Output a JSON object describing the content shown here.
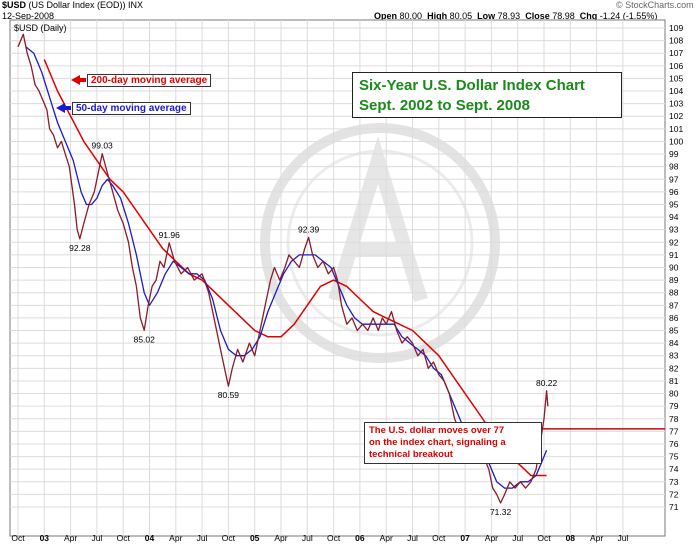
{
  "header": {
    "symbol": "$USD",
    "name": "(US Dollar Index (EOD)) INX",
    "date": "12-Sep-2008",
    "period": "$USD (Daily)",
    "open_label": "Open",
    "open": "80.00",
    "high_label": "High",
    "high": "80.05",
    "low_label": "Low",
    "low": "78.93",
    "close_label": "Close",
    "close": "78.98",
    "chg_label": "Chg",
    "chg": "-1.24 (-1.55%)",
    "source": "© StockCharts.com"
  },
  "annotations": {
    "title_line1": "Six-Year U.S. Dollar Index Chart",
    "title_line2": "Sept. 2002 to Sept. 2008",
    "ma200_label": "200-day moving average",
    "ma50_label": "50-day moving average",
    "note_line1": "The U.S. dollar moves over 77",
    "note_line2": "on the index chart, signaling a",
    "note_line3": "technical breakout",
    "colors": {
      "title": "#1a8a1a",
      "ma200": "#e00000",
      "ma50": "#1a1acc",
      "price": "#8b1a2a",
      "note": "#d00000"
    }
  },
  "chart_data": {
    "type": "line",
    "ylim": [
      70,
      110
    ],
    "yticks": [
      71,
      72,
      73,
      74,
      75,
      76,
      77,
      78,
      79,
      80,
      81,
      82,
      83,
      84,
      85,
      86,
      87,
      88,
      89,
      90,
      91,
      92,
      93,
      94,
      95,
      96,
      97,
      98,
      99,
      100,
      101,
      102,
      103,
      104,
      105,
      106,
      107,
      108,
      109
    ],
    "xlabels": [
      "Oct",
      "03",
      "Apr",
      "Jul",
      "Oct",
      "04",
      "Apr",
      "Jul",
      "Oct",
      "05",
      "Apr",
      "Jul",
      "Oct",
      "06",
      "Apr",
      "Jul",
      "Oct",
      "07",
      "Apr",
      "Jul",
      "Oct",
      "08",
      "Apr",
      "Jul"
    ],
    "grid": true,
    "reference_line": 77.2,
    "series": [
      {
        "name": "$USD (Daily)",
        "points": [
          [
            0,
            107.5
          ],
          [
            0.2,
            108.5
          ],
          [
            0.35,
            107
          ],
          [
            0.5,
            106
          ],
          [
            0.65,
            104.5
          ],
          [
            0.8,
            104
          ],
          [
            1.0,
            103
          ],
          [
            1.1,
            102.5
          ],
          [
            1.2,
            101
          ],
          [
            1.35,
            100.5
          ],
          [
            1.5,
            99.5
          ],
          [
            1.65,
            100
          ],
          [
            1.8,
            99
          ],
          [
            1.95,
            98
          ],
          [
            2.05,
            96.5
          ],
          [
            2.15,
            95
          ],
          [
            2.25,
            93
          ],
          [
            2.35,
            92.28
          ],
          [
            2.5,
            93.5
          ],
          [
            2.7,
            95
          ],
          [
            2.9,
            96
          ],
          [
            3.05,
            97.5
          ],
          [
            3.2,
            99.03
          ],
          [
            3.4,
            97.5
          ],
          [
            3.6,
            96
          ],
          [
            3.8,
            94.5
          ],
          [
            4.0,
            93.5
          ],
          [
            4.2,
            92
          ],
          [
            4.35,
            90
          ],
          [
            4.5,
            88.5
          ],
          [
            4.65,
            86
          ],
          [
            4.8,
            85.02
          ],
          [
            4.95,
            87
          ],
          [
            5.1,
            88.5
          ],
          [
            5.25,
            89
          ],
          [
            5.4,
            90.5
          ],
          [
            5.55,
            90
          ],
          [
            5.75,
            91.96
          ],
          [
            5.95,
            90.5
          ],
          [
            6.2,
            89.5
          ],
          [
            6.45,
            90
          ],
          [
            6.7,
            89
          ],
          [
            7.0,
            89.5
          ],
          [
            7.25,
            88
          ],
          [
            7.5,
            85.5
          ],
          [
            7.7,
            83.5
          ],
          [
            7.85,
            82
          ],
          [
            8.0,
            80.59
          ],
          [
            8.15,
            82
          ],
          [
            8.35,
            83.5
          ],
          [
            8.55,
            82.5
          ],
          [
            8.8,
            84
          ],
          [
            9.0,
            83
          ],
          [
            9.25,
            85.5
          ],
          [
            9.45,
            87.5
          ],
          [
            9.6,
            89
          ],
          [
            9.75,
            90
          ],
          [
            9.95,
            89
          ],
          [
            10.15,
            90
          ],
          [
            10.3,
            91
          ],
          [
            10.5,
            90.5
          ],
          [
            10.7,
            90
          ],
          [
            10.9,
            91.5
          ],
          [
            11.05,
            92.39
          ],
          [
            11.2,
            91
          ],
          [
            11.4,
            90
          ],
          [
            11.6,
            90.5
          ],
          [
            11.8,
            89.5
          ],
          [
            12.0,
            90
          ],
          [
            12.15,
            89
          ],
          [
            12.3,
            87
          ],
          [
            12.5,
            85.5
          ],
          [
            12.7,
            86
          ],
          [
            12.9,
            85
          ],
          [
            13.1,
            85.5
          ],
          [
            13.3,
            85
          ],
          [
            13.5,
            86
          ],
          [
            13.7,
            85
          ],
          [
            13.85,
            86
          ],
          [
            14.0,
            85.5
          ],
          [
            14.2,
            86.5
          ],
          [
            14.4,
            85
          ],
          [
            14.6,
            84
          ],
          [
            14.8,
            84.5
          ],
          [
            15.0,
            84
          ],
          [
            15.2,
            83
          ],
          [
            15.4,
            83.5
          ],
          [
            15.6,
            82
          ],
          [
            15.8,
            82.5
          ],
          [
            16.0,
            81.5
          ],
          [
            16.2,
            81
          ],
          [
            16.4,
            80
          ],
          [
            16.6,
            78
          ],
          [
            16.8,
            77
          ],
          [
            17.0,
            76
          ],
          [
            17.15,
            77
          ],
          [
            17.3,
            76.5
          ],
          [
            17.5,
            76
          ],
          [
            17.7,
            75
          ],
          [
            17.9,
            74
          ],
          [
            18.05,
            72.5
          ],
          [
            18.2,
            72
          ],
          [
            18.35,
            71.32
          ],
          [
            18.5,
            72
          ],
          [
            18.7,
            73
          ],
          [
            18.9,
            72.5
          ],
          [
            19.1,
            73
          ],
          [
            19.3,
            72.5
          ],
          [
            19.5,
            73
          ],
          [
            19.7,
            74
          ],
          [
            19.85,
            76
          ],
          [
            20.0,
            78
          ],
          [
            20.1,
            80.22
          ],
          [
            20.15,
            79
          ]
        ]
      },
      {
        "name": "50-day moving average",
        "points": [
          [
            0.3,
            107.5
          ],
          [
            0.6,
            107
          ],
          [
            0.9,
            105.5
          ],
          [
            1.2,
            103.5
          ],
          [
            1.5,
            101.5
          ],
          [
            1.8,
            100
          ],
          [
            2.1,
            98.5
          ],
          [
            2.4,
            96
          ],
          [
            2.6,
            95
          ],
          [
            2.8,
            95
          ],
          [
            3.0,
            95.5
          ],
          [
            3.2,
            96.5
          ],
          [
            3.4,
            97
          ],
          [
            3.6,
            96.5
          ],
          [
            3.9,
            95.5
          ],
          [
            4.2,
            93.5
          ],
          [
            4.5,
            91
          ],
          [
            4.8,
            88
          ],
          [
            5.0,
            87
          ],
          [
            5.3,
            88
          ],
          [
            5.6,
            89.5
          ],
          [
            5.9,
            90.5
          ],
          [
            6.2,
            90
          ],
          [
            6.5,
            89.5
          ],
          [
            6.8,
            89.5
          ],
          [
            7.1,
            89
          ],
          [
            7.4,
            87.5
          ],
          [
            7.7,
            85
          ],
          [
            8.0,
            83.5
          ],
          [
            8.3,
            83
          ],
          [
            8.6,
            83
          ],
          [
            8.9,
            83.5
          ],
          [
            9.2,
            84.5
          ],
          [
            9.5,
            86.5
          ],
          [
            9.8,
            88
          ],
          [
            10.1,
            89.5
          ],
          [
            10.4,
            90.5
          ],
          [
            10.7,
            91
          ],
          [
            11.0,
            91
          ],
          [
            11.3,
            91
          ],
          [
            11.6,
            90.5
          ],
          [
            11.9,
            90
          ],
          [
            12.2,
            88.5
          ],
          [
            12.5,
            87
          ],
          [
            12.8,
            86
          ],
          [
            13.1,
            85.5
          ],
          [
            13.4,
            85.5
          ],
          [
            13.7,
            85.5
          ],
          [
            14.0,
            85.5
          ],
          [
            14.3,
            85.5
          ],
          [
            14.6,
            84.5
          ],
          [
            14.9,
            84
          ],
          [
            15.2,
            83.5
          ],
          [
            15.5,
            83
          ],
          [
            15.8,
            82
          ],
          [
            16.1,
            81.5
          ],
          [
            16.4,
            80
          ],
          [
            16.7,
            78.5
          ],
          [
            17.0,
            77
          ],
          [
            17.3,
            76.5
          ],
          [
            17.6,
            75.5
          ],
          [
            17.9,
            74.5
          ],
          [
            18.2,
            73
          ],
          [
            18.5,
            72.5
          ],
          [
            18.8,
            72.5
          ],
          [
            19.1,
            73
          ],
          [
            19.4,
            73
          ],
          [
            19.7,
            73.5
          ],
          [
            19.9,
            74.5
          ],
          [
            20.1,
            75.5
          ]
        ]
      },
      {
        "name": "200-day moving average",
        "points": [
          [
            1.0,
            106.5
          ],
          [
            1.5,
            104
          ],
          [
            2.0,
            102
          ],
          [
            2.5,
            100
          ],
          [
            3.0,
            98.5
          ],
          [
            3.5,
            97
          ],
          [
            4.0,
            96
          ],
          [
            4.5,
            94.5
          ],
          [
            5.0,
            93
          ],
          [
            5.5,
            91.5
          ],
          [
            6.0,
            90.5
          ],
          [
            6.5,
            89.5
          ],
          [
            7.0,
            89
          ],
          [
            7.5,
            88
          ],
          [
            8.0,
            87
          ],
          [
            8.5,
            86
          ],
          [
            9.0,
            85
          ],
          [
            9.5,
            84.5
          ],
          [
            10.0,
            84.5
          ],
          [
            10.5,
            85.5
          ],
          [
            11.0,
            87
          ],
          [
            11.5,
            88.5
          ],
          [
            12.0,
            89
          ],
          [
            12.5,
            88.5
          ],
          [
            13.0,
            87.5
          ],
          [
            13.5,
            86.5
          ],
          [
            14.0,
            86
          ],
          [
            14.5,
            85.5
          ],
          [
            15.0,
            85
          ],
          [
            15.5,
            84
          ],
          [
            16.0,
            83
          ],
          [
            16.5,
            81.5
          ],
          [
            17.0,
            80
          ],
          [
            17.5,
            78.5
          ],
          [
            18.0,
            77
          ],
          [
            18.5,
            75.5
          ],
          [
            19.0,
            74.5
          ],
          [
            19.5,
            73.5
          ],
          [
            20.1,
            73.5
          ]
        ]
      }
    ],
    "price_labels": [
      {
        "text": "92.28",
        "x": 2.35,
        "y": 92.28,
        "pos": "below"
      },
      {
        "text": "99.03",
        "x": 3.2,
        "y": 99.03,
        "pos": "above"
      },
      {
        "text": "85.02",
        "x": 4.8,
        "y": 85.02,
        "pos": "below"
      },
      {
        "text": "91.96",
        "x": 5.75,
        "y": 91.96,
        "pos": "above"
      },
      {
        "text": "80.59",
        "x": 8.0,
        "y": 80.59,
        "pos": "below"
      },
      {
        "text": "92.39",
        "x": 11.05,
        "y": 92.39,
        "pos": "above"
      },
      {
        "text": "71.32",
        "x": 18.35,
        "y": 71.32,
        "pos": "below"
      },
      {
        "text": "80.22",
        "x": 20.1,
        "y": 80.22,
        "pos": "above"
      }
    ]
  }
}
